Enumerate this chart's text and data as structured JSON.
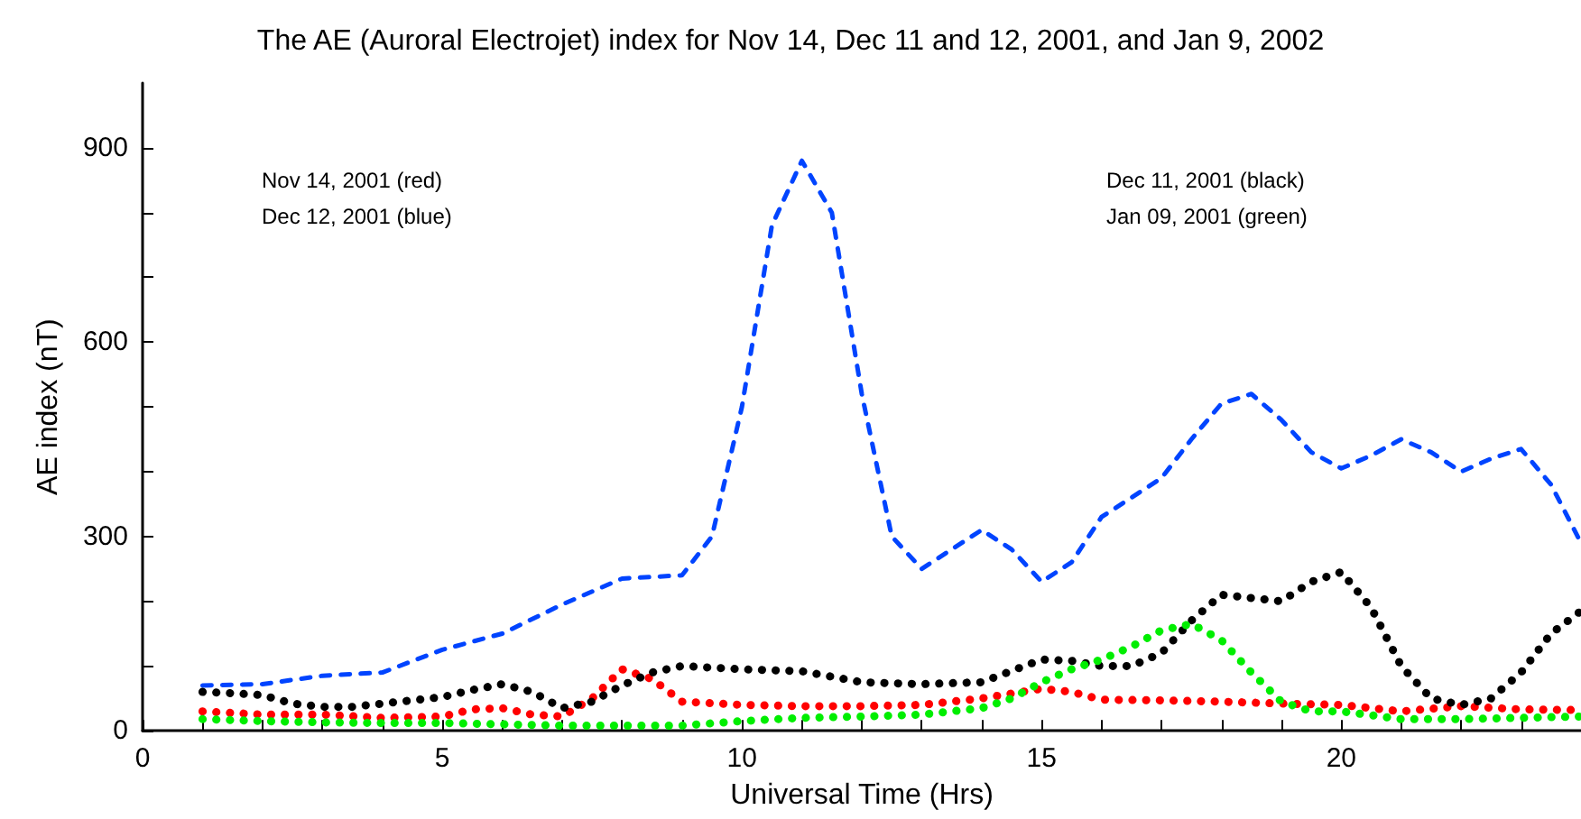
{
  "chart_data": {
    "type": "line",
    "title": "The AE (Auroral Electrojet) index for Nov 14, Dec 11 and 12, 2001, and Jan 9, 2002",
    "xlabel": "Universal Time (Hrs)",
    "ylabel": "AE index (nT)",
    "annotations": [
      "Nov 14, 2001 (red)\nDec 12, 2001 (blue)",
      "Dec 11, 2001 (black)\nJan 09, 2001 (green)"
    ],
    "xlim": [
      0,
      24
    ],
    "xticks": [
      0,
      {
        "value": 1,
        "label": null
      },
      {
        "value": 2,
        "label": null
      },
      {
        "value": 3,
        "label": null
      },
      {
        "value": 4,
        "label": null
      },
      5,
      {
        "value": 6,
        "label": null
      },
      {
        "value": 7,
        "label": null
      },
      {
        "value": 8,
        "label": null
      },
      {
        "value": 9,
        "label": null
      },
      10,
      {
        "value": 11,
        "label": null
      },
      {
        "value": 12,
        "label": null
      },
      {
        "value": 13,
        "label": null
      },
      {
        "value": 14,
        "label": null
      },
      15,
      {
        "value": 16,
        "label": null
      },
      {
        "value": 17,
        "label": null
      },
      {
        "value": 18,
        "label": null
      },
      {
        "value": 19,
        "label": null
      },
      20,
      {
        "value": 21,
        "label": null
      },
      {
        "value": 22,
        "label": null
      },
      {
        "value": 23,
        "label": null
      }
    ],
    "ylim": [
      0,
      1000
    ],
    "yticks": [
      0,
      {
        "value": 100,
        "label": null
      },
      {
        "value": 200,
        "label": null
      },
      300,
      {
        "value": 400,
        "label": null
      },
      {
        "value": 500,
        "label": null
      },
      600,
      {
        "value": 700,
        "label": null
      },
      {
        "value": 800,
        "label": null
      },
      900
    ],
    "grid": false,
    "marker": "none",
    "series": [
      {
        "color": "#0044ff",
        "line_style": "dashed",
        "x": [
          1,
          2,
          3,
          4,
          5,
          6,
          7,
          8,
          9,
          9.5,
          10,
          10.5,
          11,
          11.5,
          12,
          12.5,
          13,
          13.5,
          14,
          14.5,
          15,
          15.5,
          16,
          17,
          17.5,
          18,
          18.5,
          19,
          19.5,
          20,
          20.5,
          21,
          21.5,
          22,
          22.5,
          23,
          23.5,
          24
        ],
        "values": [
          70,
          72,
          85,
          90,
          125,
          150,
          195,
          235,
          240,
          300,
          500,
          780,
          880,
          800,
          520,
          300,
          250,
          280,
          310,
          280,
          230,
          260,
          330,
          390,
          450,
          505,
          520,
          480,
          430,
          405,
          425,
          450,
          430,
          400,
          420,
          435,
          380,
          290
        ]
      },
      {
        "color": "#ff0000",
        "line_style": "dotted",
        "x": [
          1,
          2,
          3,
          4,
          5,
          5.5,
          6,
          6.5,
          7,
          7.5,
          8,
          8.5,
          9,
          10,
          11,
          12,
          13,
          14,
          15,
          15.5,
          16,
          17,
          18,
          19,
          20,
          21,
          22,
          23,
          24
        ],
        "values": [
          30,
          25,
          25,
          20,
          22,
          33,
          35,
          25,
          22,
          50,
          95,
          80,
          45,
          40,
          38,
          38,
          40,
          50,
          65,
          60,
          48,
          47,
          45,
          42,
          40,
          30,
          38,
          33,
          32
        ]
      },
      {
        "color": "#000000",
        "line_style": "dotted",
        "x": [
          1,
          1.5,
          2,
          2.5,
          3,
          3.5,
          4,
          4.5,
          5,
          5.5,
          6,
          6.5,
          7,
          7.5,
          8,
          8.5,
          9,
          10,
          11,
          12,
          13,
          14,
          15,
          15.5,
          16,
          16.5,
          17,
          17.5,
          18,
          18.5,
          19,
          19.5,
          20,
          20.5,
          21,
          21.5,
          22,
          22.5,
          23,
          23.5,
          24
        ],
        "values": [
          60,
          58,
          55,
          42,
          37,
          37,
          42,
          47,
          52,
          63,
          72,
          60,
          35,
          45,
          70,
          90,
          100,
          95,
          92,
          75,
          72,
          75,
          110,
          108,
          100,
          100,
          120,
          170,
          210,
          205,
          200,
          230,
          245,
          190,
          100,
          50,
          40,
          50,
          90,
          150,
          185
        ]
      },
      {
        "color": "#00ee00",
        "line_style": "dotted",
        "x": [
          1,
          2,
          3,
          4,
          5,
          6,
          7,
          8,
          9,
          10,
          11,
          12,
          13,
          14,
          14.5,
          15,
          15.5,
          16,
          16.5,
          17,
          17.5,
          18,
          18.5,
          19,
          19.5,
          20,
          21,
          22,
          23,
          24
        ],
        "values": [
          18,
          15,
          13,
          12,
          12,
          10,
          8,
          8,
          8,
          15,
          20,
          22,
          25,
          35,
          50,
          75,
          95,
          110,
          130,
          155,
          165,
          140,
          90,
          45,
          30,
          30,
          18,
          18,
          20,
          22
        ]
      }
    ]
  }
}
